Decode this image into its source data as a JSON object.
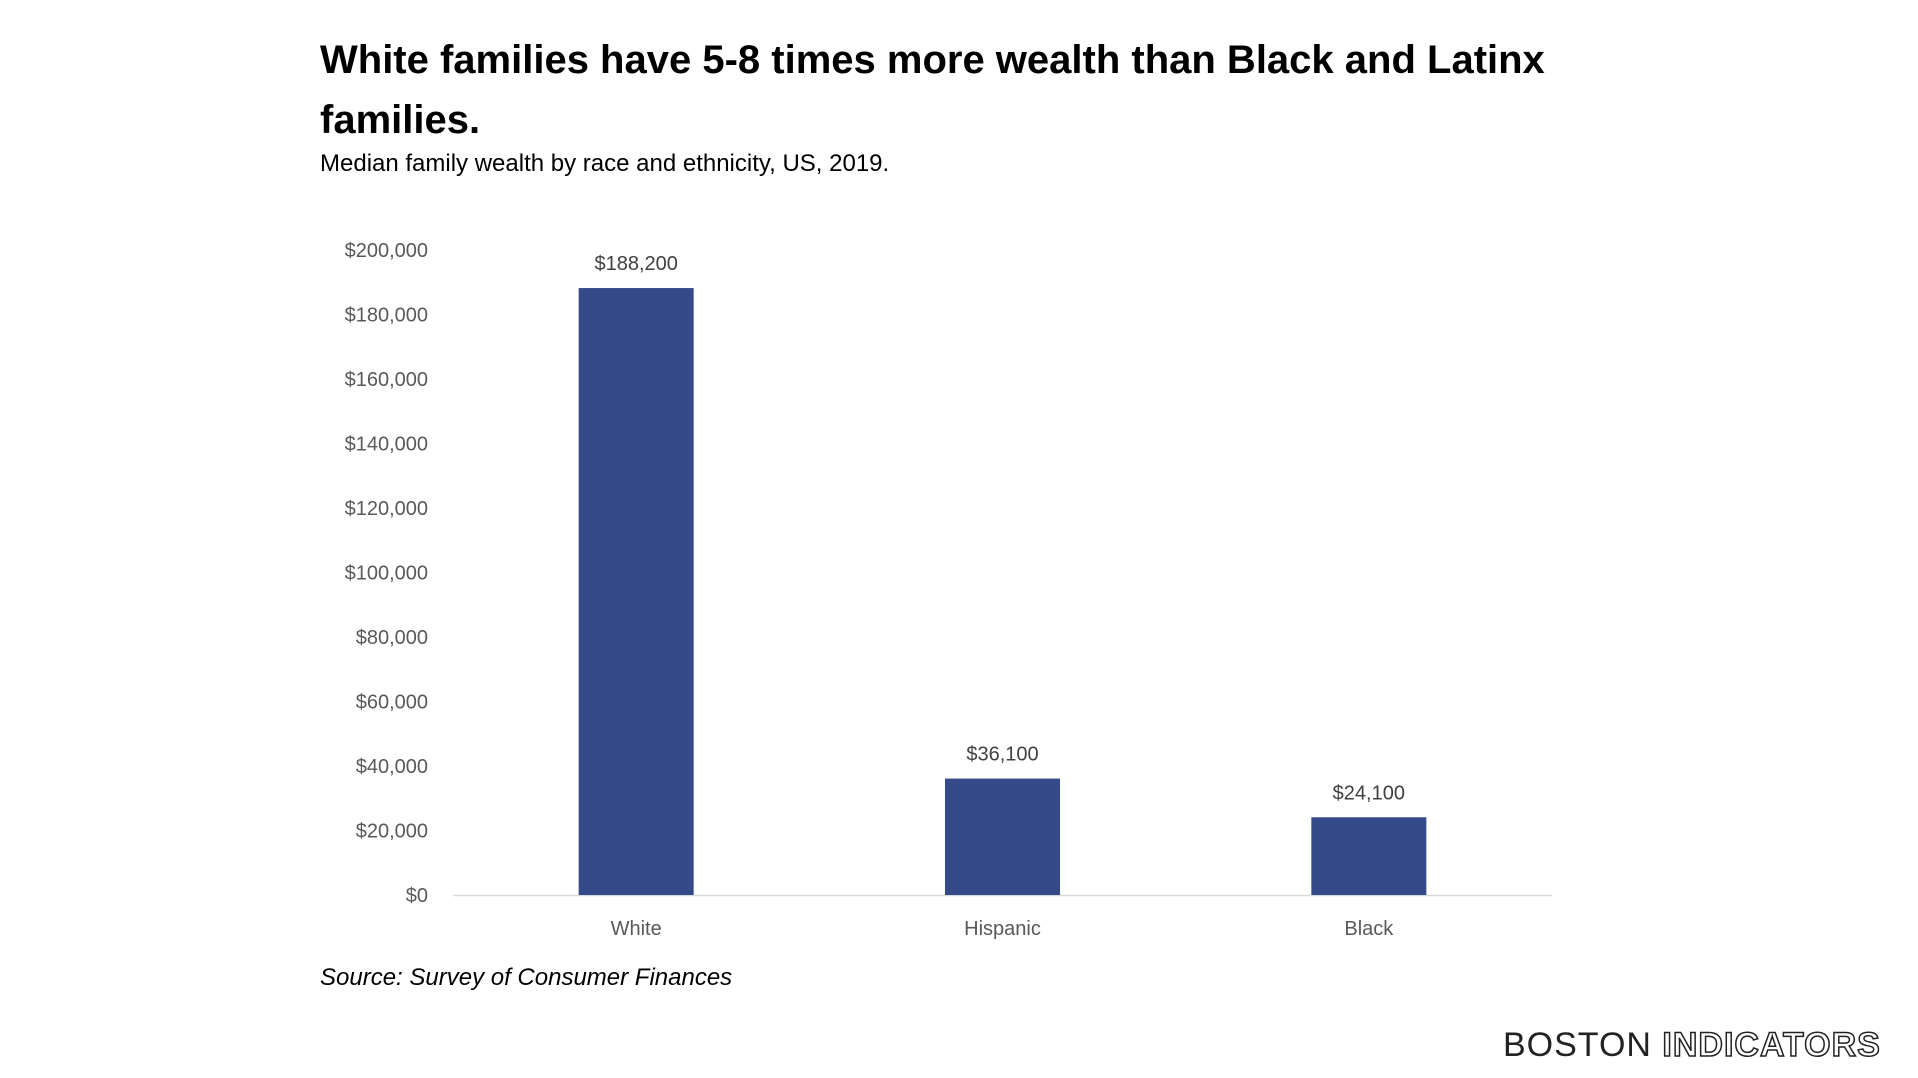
{
  "title": "White families have 5-8 times more wealth than Black and Latinx families.",
  "subtitle": "Median family wealth by race and ethnicity, US, 2019.",
  "source": "Source: Survey of Consumer Finances",
  "logo": {
    "part1": "BOSTON",
    "part2": "INDICATORS"
  },
  "chart_data": {
    "type": "bar",
    "categories": [
      "White",
      "Hispanic",
      "Black"
    ],
    "values": [
      188200,
      36100,
      24100
    ],
    "data_labels": [
      "$188,200",
      "$36,100",
      "$24,100"
    ],
    "ylim": [
      0,
      200000
    ],
    "yticks": [
      "$0",
      "$20,000",
      "$40,000",
      "$60,000",
      "$80,000",
      "$100,000",
      "$120,000",
      "$140,000",
      "$160,000",
      "$180,000",
      "$200,000"
    ],
    "grid": false,
    "bar_color": "#354a89"
  }
}
